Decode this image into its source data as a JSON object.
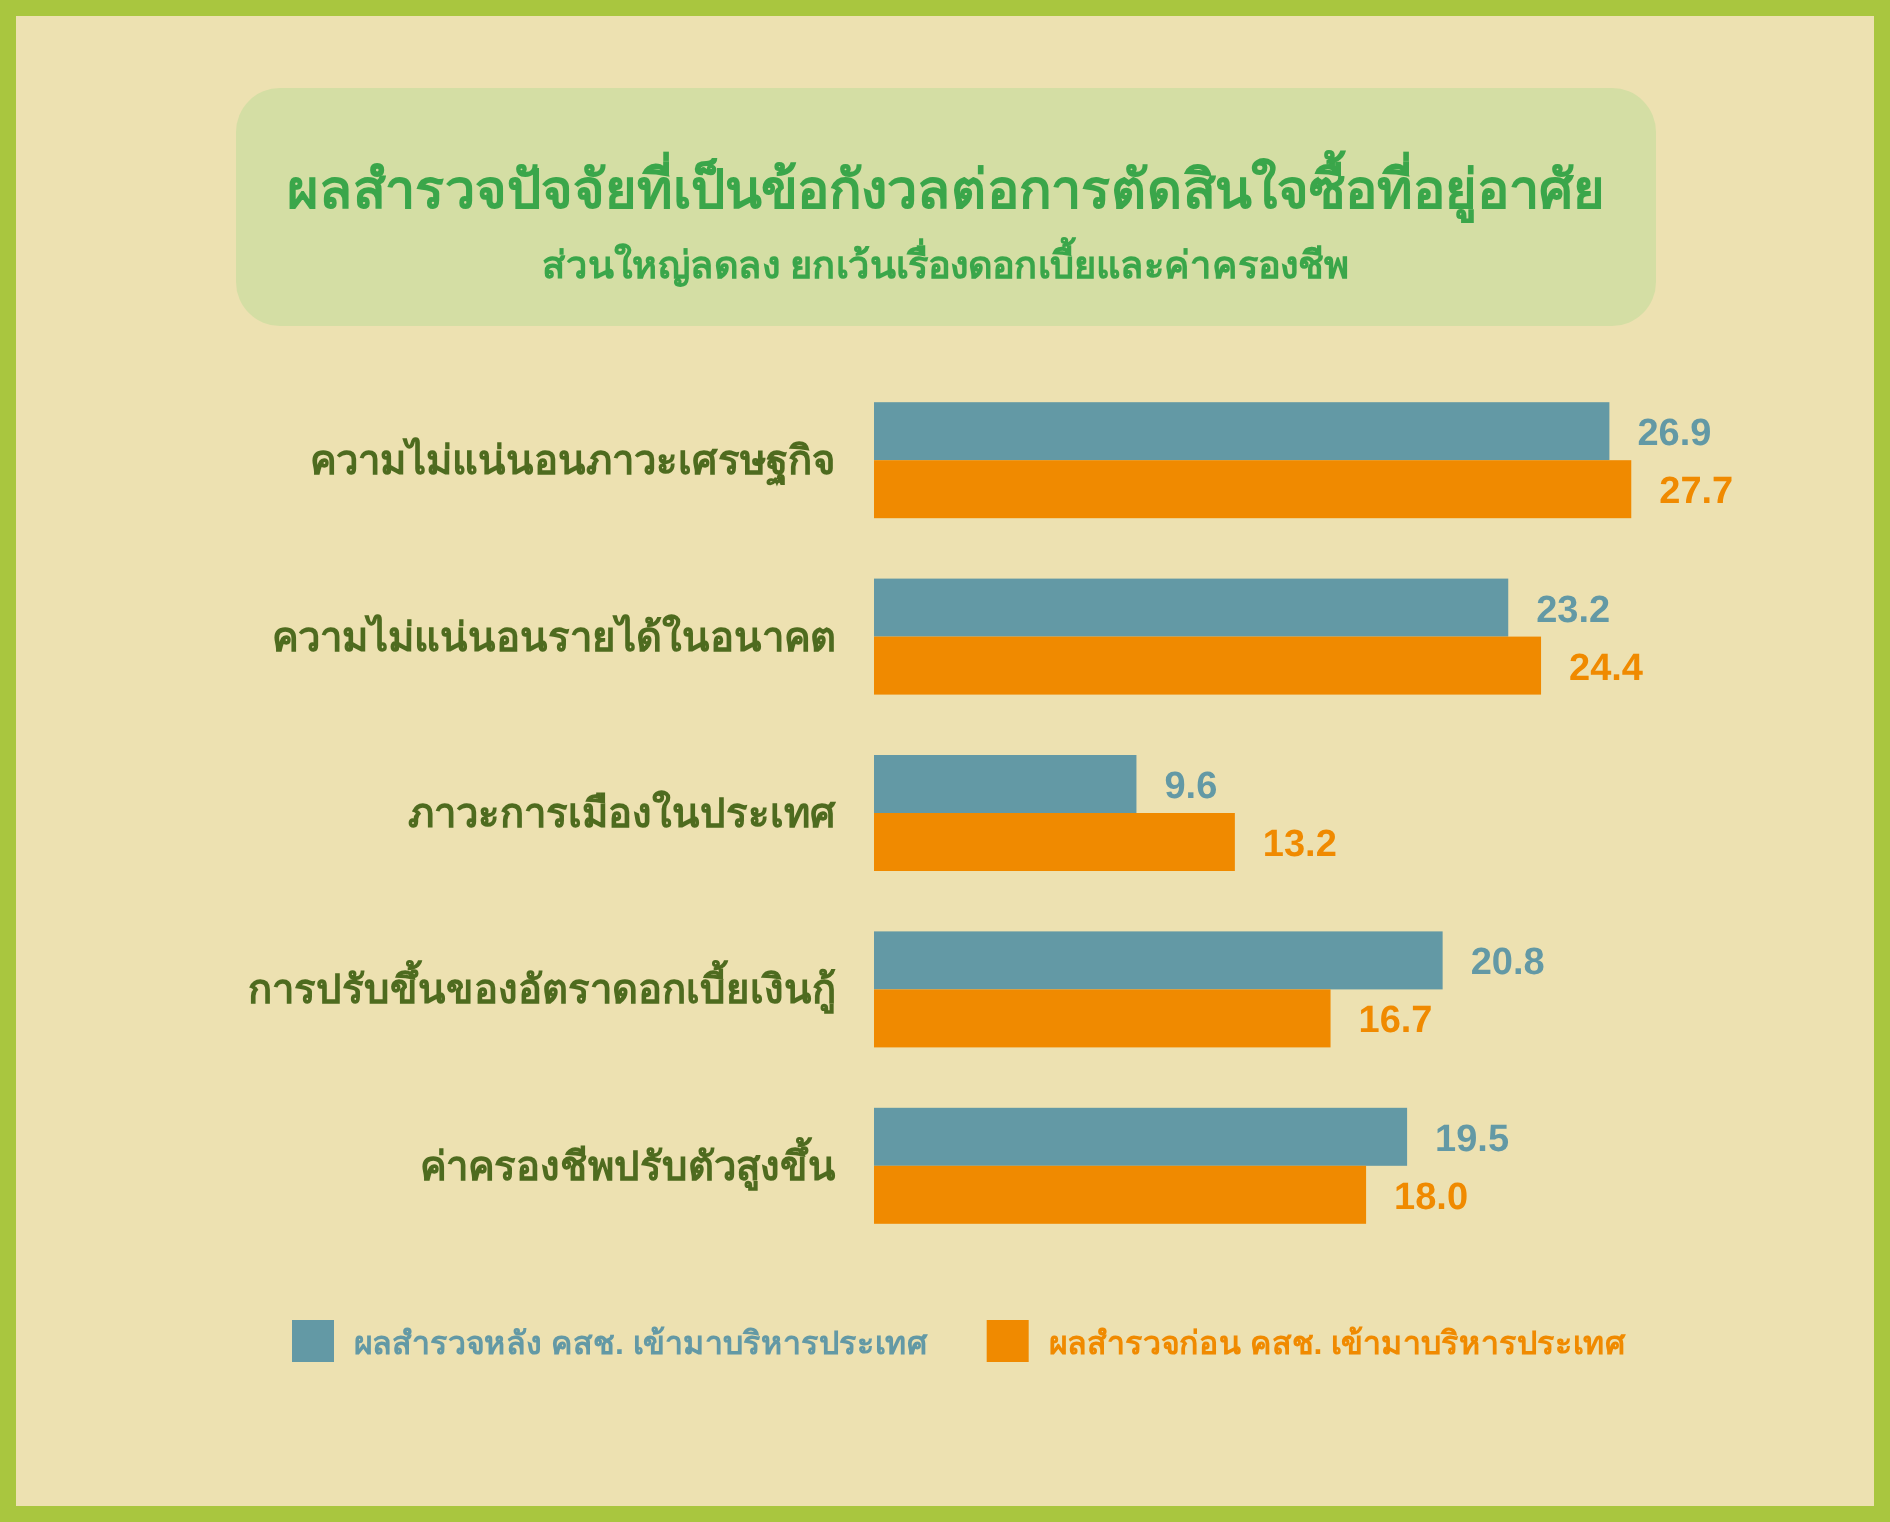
{
  "chart_data": {
    "type": "bar",
    "orientation": "horizontal",
    "title": "ผลสำรวจปัจจัยที่เป็นข้อกังวลต่อการตัดสินใจซื้อที่อยู่อาศัย",
    "subtitle": "ส่วนใหญ่ลดลง ยกเว้นเรื่องดอกเบี้ยและค่าครองชีพ",
    "categories": [
      "ความไม่แน่นอนภาวะเศรษฐกิจ",
      "ความไม่แน่นอนรายได้ในอนาคต",
      "ภาวะการเมืองในประเทศ",
      "การปรับขึ้นของอัตราดอกเบี้ยเงินกู้",
      "ค่าครองชีพปรับตัวสูงขึ้น"
    ],
    "series": [
      {
        "name": "ผลสำรวจหลัง คสช. เข้ามาบริหารประเทศ",
        "color": "#6399a5",
        "values": [
          26.9,
          23.2,
          9.6,
          20.8,
          19.5
        ],
        "value_labels": [
          "26.9",
          "23.2",
          "9.6",
          "20.8",
          "19.5"
        ]
      },
      {
        "name": "ผลสำรวจก่อน คสช. เข้ามาบริหารประเทศ",
        "color": "#f08a00",
        "values": [
          27.7,
          24.4,
          13.2,
          16.7,
          18.0
        ],
        "value_labels": [
          "27.7",
          "24.4",
          "13.2",
          "16.7",
          "18.0"
        ]
      }
    ],
    "legend": "bottom"
  }
}
